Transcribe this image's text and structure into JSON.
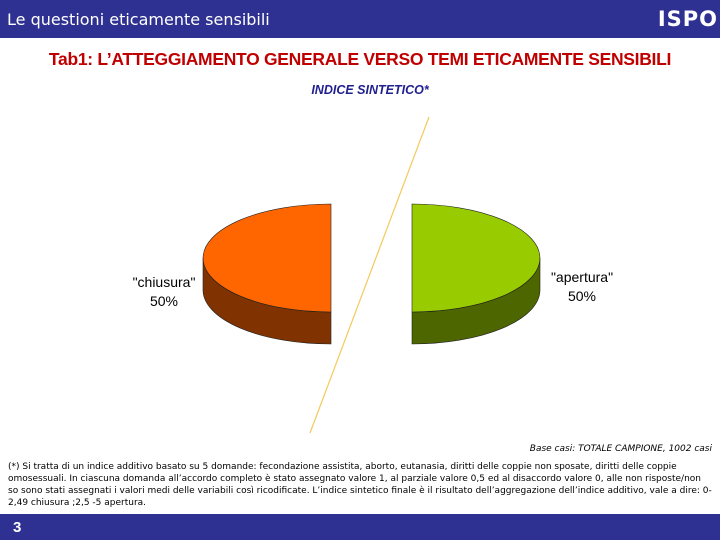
{
  "header": {
    "title": "Le questioni eticamente sensibili",
    "brand": "ISPO"
  },
  "headline": "Tab1: L’ATTEGGIAMENTO GENERALE VERSO TEMI ETICAMENTE SENSIBILI",
  "subheading": "INDICE SINTETICO*",
  "chart_data": {
    "type": "pie",
    "slices": [
      {
        "label": "\"apertura\"",
        "value_label": "50%",
        "value": 50,
        "color": "#99cc00",
        "side_color": "#4d6600"
      },
      {
        "label": "\"chiusura\"",
        "value_label": "50%",
        "value": 50,
        "color": "#ff6600",
        "side_color": "#803300"
      }
    ],
    "style": "3d-exploded"
  },
  "base_note": "Base casi: TOTALE CAMPIONE, 1002 casi",
  "footnote": "(*) Si tratta di un indice additivo basato su 5 domande: fecondazione assistita, aborto, eutanasia, diritti delle coppie non sposate, diritti delle coppie omosessuali. In ciascuna domanda all’accordo completo è stato assegnato valore 1, al parziale valore 0,5 ed al disaccordo valore 0, alle non risposte/non so sono stati assegnati i valori medi delle variabili così ricodificate. L’indice sintetico finale è il risultato dell’aggregazione dell’indice additivo, vale a dire: 0-2,49 chiusura ;2,5 -5 apertura.",
  "footer": {
    "page_number": "3"
  }
}
